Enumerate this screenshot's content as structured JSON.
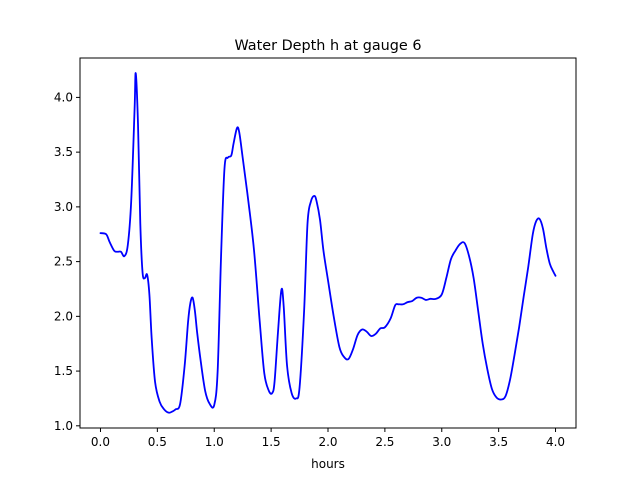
{
  "chart_data": {
    "type": "line",
    "title": "Water Depth h at gauge 6",
    "xlabel": "hours",
    "ylabel": "",
    "xlim": [
      -0.18,
      4.18
    ],
    "ylim": [
      0.98,
      4.36
    ],
    "xticks": [
      0.0,
      0.5,
      1.0,
      1.5,
      2.0,
      2.5,
      3.0,
      3.5,
      4.0
    ],
    "xtick_labels": [
      "0.0",
      "0.5",
      "1.0",
      "1.5",
      "2.0",
      "2.5",
      "3.0",
      "3.5",
      "4.0"
    ],
    "yticks": [
      1.0,
      1.5,
      2.0,
      2.5,
      3.0,
      3.5,
      4.0
    ],
    "ytick_labels": [
      "1.0",
      "1.5",
      "2.0",
      "2.5",
      "3.0",
      "3.5",
      "4.0"
    ],
    "grid": false,
    "legend": "none",
    "series": [
      {
        "color": "#0000ff",
        "x": [
          0.0,
          0.05,
          0.08,
          0.12,
          0.15,
          0.18,
          0.21,
          0.24,
          0.27,
          0.3,
          0.31,
          0.33,
          0.35,
          0.37,
          0.39,
          0.41,
          0.43,
          0.45,
          0.48,
          0.52,
          0.56,
          0.6,
          0.63,
          0.66,
          0.7,
          0.74,
          0.77,
          0.79,
          0.81,
          0.83,
          0.85,
          0.88,
          0.92,
          0.96,
          1.0,
          1.03,
          1.06,
          1.09,
          1.12,
          1.15,
          1.17,
          1.2,
          1.22,
          1.25,
          1.3,
          1.35,
          1.4,
          1.44,
          1.48,
          1.51,
          1.53,
          1.56,
          1.59,
          1.61,
          1.64,
          1.68,
          1.72,
          1.75,
          1.79,
          1.82,
          1.85,
          1.88,
          1.9,
          1.93,
          1.96,
          2.0,
          2.05,
          2.1,
          2.14,
          2.18,
          2.22,
          2.26,
          2.3,
          2.34,
          2.38,
          2.42,
          2.46,
          2.5,
          2.55,
          2.59,
          2.62,
          2.66,
          2.7,
          2.74,
          2.78,
          2.82,
          2.86,
          2.9,
          2.95,
          3.0,
          3.04,
          3.08,
          3.12,
          3.16,
          3.2,
          3.24,
          3.28,
          3.32,
          3.36,
          3.4,
          3.44,
          3.48,
          3.52,
          3.56,
          3.6,
          3.64,
          3.68,
          3.72,
          3.76,
          3.8,
          3.83,
          3.86,
          3.89,
          3.92,
          3.95,
          3.98,
          4.0
        ],
        "y": [
          2.76,
          2.75,
          2.68,
          2.6,
          2.59,
          2.59,
          2.55,
          2.65,
          3.05,
          3.9,
          4.22,
          3.75,
          2.85,
          2.4,
          2.35,
          2.38,
          2.2,
          1.8,
          1.4,
          1.22,
          1.15,
          1.12,
          1.13,
          1.15,
          1.2,
          1.55,
          1.95,
          2.12,
          2.17,
          2.05,
          1.85,
          1.6,
          1.32,
          1.2,
          1.19,
          1.5,
          2.55,
          3.35,
          3.45,
          3.47,
          3.58,
          3.72,
          3.68,
          3.45,
          3.05,
          2.6,
          1.95,
          1.48,
          1.32,
          1.3,
          1.4,
          1.85,
          2.24,
          2.1,
          1.55,
          1.3,
          1.25,
          1.35,
          2.05,
          2.85,
          3.05,
          3.1,
          3.05,
          2.88,
          2.6,
          2.33,
          2.0,
          1.72,
          1.63,
          1.61,
          1.7,
          1.83,
          1.88,
          1.86,
          1.82,
          1.84,
          1.89,
          1.9,
          1.98,
          2.1,
          2.11,
          2.11,
          2.13,
          2.14,
          2.17,
          2.17,
          2.15,
          2.16,
          2.16,
          2.2,
          2.35,
          2.52,
          2.6,
          2.66,
          2.67,
          2.55,
          2.35,
          2.05,
          1.75,
          1.52,
          1.34,
          1.26,
          1.24,
          1.27,
          1.42,
          1.65,
          1.9,
          2.18,
          2.45,
          2.75,
          2.87,
          2.89,
          2.8,
          2.62,
          2.48,
          2.41,
          2.37
        ]
      }
    ]
  }
}
